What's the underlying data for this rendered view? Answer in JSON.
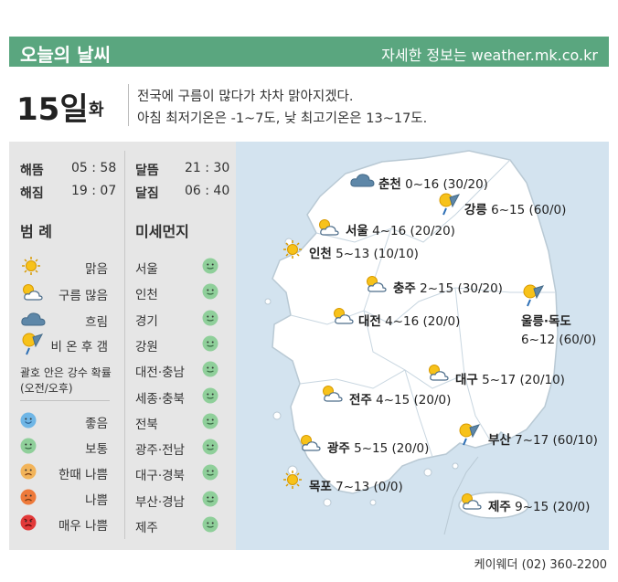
{
  "header": {
    "title": "오늘의 날씨",
    "link_text": "자세한 정보는 weather.mk.co.kr"
  },
  "date": {
    "day": "15일",
    "weekday": "화"
  },
  "summary": {
    "line1": "전국에 구름이 많다가 차차 맑아지겠다.",
    "line2": "아침 최저기온은 -1~7도, 낮 최고기온은 13~17도."
  },
  "sun": {
    "sunrise_label": "해뜸",
    "sunrise": "05 : 58",
    "sunset_label": "해짐",
    "sunset": "19 : 07"
  },
  "moon": {
    "moonrise_label": "달뜸",
    "moonrise": "21 : 30",
    "moonset_label": "달짐",
    "moonset": "06 : 40"
  },
  "legend": {
    "title": "범 례",
    "items": [
      {
        "icon": "sun-icon",
        "label": "맑음"
      },
      {
        "icon": "sun-cloud-icon",
        "label": "구름 많음"
      },
      {
        "icon": "cloud-icon",
        "label": "흐림"
      },
      {
        "icon": "rain-then-clear-icon",
        "label": "비 온 후 갬"
      }
    ],
    "note": "괄호 안은 강수 확률 (오전/오후)"
  },
  "dust_scale": [
    {
      "label": "좋음",
      "color": "#6fb6e6",
      "mood": "smile"
    },
    {
      "label": "보통",
      "color": "#8fcf9a",
      "mood": "neutral"
    },
    {
      "label": "한때 나쁨",
      "color": "#f2b45a",
      "mood": "frown"
    },
    {
      "label": "나쁨",
      "color": "#ee7a3b",
      "mood": "frown"
    },
    {
      "label": "매우 나쁨",
      "color": "#e23a3a",
      "mood": "angry"
    }
  ],
  "fine_dust": {
    "title": "미세먼지",
    "regions": [
      {
        "name": "서울",
        "level": "보통"
      },
      {
        "name": "인천",
        "level": "보통"
      },
      {
        "name": "경기",
        "level": "보통"
      },
      {
        "name": "강원",
        "level": "보통"
      },
      {
        "name": "대전·충남",
        "level": "보통"
      },
      {
        "name": "세종·충북",
        "level": "보통"
      },
      {
        "name": "전북",
        "level": "보통"
      },
      {
        "name": "광주·전남",
        "level": "보통"
      },
      {
        "name": "대구·경북",
        "level": "보통"
      },
      {
        "name": "부산·경남",
        "level": "보통"
      },
      {
        "name": "제주",
        "level": "보통"
      }
    ]
  },
  "cities": [
    {
      "name": "춘천",
      "forecast": "0~16 (30/20)",
      "icon": "cloud-icon"
    },
    {
      "name": "강릉",
      "forecast": "6~15 (60/0)",
      "icon": "rain-then-clear-icon"
    },
    {
      "name": "서울",
      "forecast": "4~16 (20/20)",
      "icon": "sun-cloud-icon"
    },
    {
      "name": "인천",
      "forecast": "5~13 (10/10)",
      "icon": "sun-icon"
    },
    {
      "name": "충주",
      "forecast": "2~15 (30/20)",
      "icon": "sun-cloud-icon"
    },
    {
      "name": "대전",
      "forecast": "4~16 (20/0)",
      "icon": "sun-cloud-icon"
    },
    {
      "name": "울릉·독도",
      "forecast": "6~12 (60/0)",
      "icon": "rain-then-clear-icon"
    },
    {
      "name": "대구",
      "forecast": "5~17 (20/10)",
      "icon": "sun-cloud-icon"
    },
    {
      "name": "전주",
      "forecast": "4~15 (20/0)",
      "icon": "sun-cloud-icon"
    },
    {
      "name": "부산",
      "forecast": "7~17 (60/10)",
      "icon": "rain-then-clear-icon"
    },
    {
      "name": "광주",
      "forecast": "5~15 (20/0)",
      "icon": "sun-cloud-icon"
    },
    {
      "name": "목포",
      "forecast": "7~13 (0/0)",
      "icon": "sun-icon"
    },
    {
      "name": "제주",
      "forecast": "9~15 (20/0)",
      "icon": "sun-cloud-icon"
    }
  ],
  "footer": "케이웨더 (02) 360-2200"
}
